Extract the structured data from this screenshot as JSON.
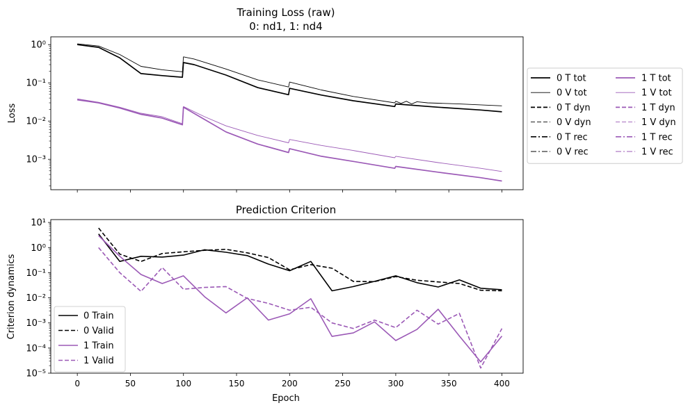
{
  "figure": {
    "top_title_line1": "Training Loss (raw)",
    "top_title_line2": "0: nd1, 1: nd4",
    "bottom_title": "Prediction Criterion",
    "top_ylabel": "Loss",
    "bottom_ylabel": "Criterion dynamics",
    "xlabel": "Epoch"
  },
  "colors": {
    "model0": "#000000",
    "model1": "#9b59b6"
  },
  "chart_data": [
    {
      "type": "line",
      "title": "Training Loss (raw)\n0: nd1, 1: nd4",
      "xlabel": "",
      "ylabel": "Loss",
      "yscale": "log",
      "xlim": [
        -25,
        420
      ],
      "ylim": [
        0.00016,
        1.6
      ],
      "x_ticks": [
        0,
        50,
        100,
        150,
        200,
        250,
        300,
        350,
        400
      ],
      "y_ticks": [
        "10^0",
        "10^-1",
        "10^-2",
        "10^-3"
      ],
      "legend_placement": "outside right",
      "legend_columns": 2,
      "legend": [
        {
          "label": "0 T tot",
          "color": "#000000",
          "style": "solid",
          "width": "thick"
        },
        {
          "label": "0 V tot",
          "color": "#000000",
          "style": "solid",
          "width": "thin"
        },
        {
          "label": "0 T dyn",
          "color": "#000000",
          "style": "dashed",
          "width": "thick"
        },
        {
          "label": "0 V dyn",
          "color": "#000000",
          "style": "dashed",
          "width": "thin"
        },
        {
          "label": "0 T rec",
          "color": "#000000",
          "style": "dashdot",
          "width": "thick"
        },
        {
          "label": "0 V rec",
          "color": "#000000",
          "style": "dashdot",
          "width": "thin"
        },
        {
          "label": "1 T tot",
          "color": "#9b59b6",
          "style": "solid",
          "width": "thick"
        },
        {
          "label": "1 V tot",
          "color": "#9b59b6",
          "style": "solid",
          "width": "thin"
        },
        {
          "label": "1 T dyn",
          "color": "#9b59b6",
          "style": "dashed",
          "width": "thick"
        },
        {
          "label": "1 V dyn",
          "color": "#9b59b6",
          "style": "dashed",
          "width": "thin"
        },
        {
          "label": "1 T rec",
          "color": "#9b59b6",
          "style": "dashdot",
          "width": "thick"
        },
        {
          "label": "1 V rec",
          "color": "#9b59b6",
          "style": "dashdot",
          "width": "thin"
        }
      ],
      "series": [
        {
          "name": "0 T tot",
          "color": "#000000",
          "dash": "solid",
          "width": "thick",
          "x": [
            0,
            20,
            40,
            60,
            80,
            99,
            100,
            110,
            140,
            170,
            199,
            200,
            230,
            260,
            299,
            300,
            340,
            380,
            400
          ],
          "y": [
            1.0,
            0.85,
            0.45,
            0.175,
            0.155,
            0.14,
            0.34,
            0.3,
            0.16,
            0.075,
            0.049,
            0.072,
            0.048,
            0.034,
            0.024,
            0.028,
            0.023,
            0.0195,
            0.0175
          ]
        },
        {
          "name": "0 V tot",
          "color": "#000000",
          "dash": "solid",
          "width": "thin",
          "x": [
            0,
            20,
            40,
            60,
            80,
            99,
            100,
            110,
            140,
            170,
            199,
            200,
            230,
            260,
            299,
            300,
            305,
            310,
            315,
            320,
            330,
            360,
            400
          ],
          "y": [
            1.05,
            0.92,
            0.55,
            0.27,
            0.22,
            0.195,
            0.48,
            0.42,
            0.23,
            0.12,
            0.078,
            0.105,
            0.065,
            0.044,
            0.03,
            0.033,
            0.029,
            0.033,
            0.028,
            0.032,
            0.03,
            0.028,
            0.025
          ]
        },
        {
          "name": "1 T tot",
          "color": "#9b59b6",
          "dash": "solid",
          "width": "thick",
          "x": [
            0,
            20,
            40,
            60,
            80,
            99,
            100,
            120,
            140,
            170,
            199,
            200,
            230,
            260,
            299,
            300,
            340,
            380,
            400
          ],
          "y": [
            0.036,
            0.03,
            0.022,
            0.015,
            0.012,
            0.008,
            0.023,
            0.011,
            0.0052,
            0.0025,
            0.0015,
            0.0019,
            0.0012,
            0.00088,
            0.00058,
            0.00065,
            0.00046,
            0.00033,
            0.00027
          ]
        },
        {
          "name": "1 V tot",
          "color": "#9b59b6",
          "dash": "solid",
          "width": "thin",
          "x": [
            0,
            20,
            40,
            60,
            80,
            99,
            100,
            120,
            140,
            170,
            199,
            200,
            230,
            260,
            299,
            300,
            340,
            380,
            400
          ],
          "y": [
            0.038,
            0.031,
            0.023,
            0.016,
            0.013,
            0.0085,
            0.024,
            0.013,
            0.0075,
            0.0042,
            0.0027,
            0.0033,
            0.0023,
            0.0017,
            0.0011,
            0.0012,
            0.00082,
            0.00058,
            0.00048
          ]
        }
      ]
    },
    {
      "type": "line",
      "title": "Prediction Criterion",
      "xlabel": "Epoch",
      "ylabel": "Criterion dynamics",
      "yscale": "log",
      "xlim": [
        -25,
        420
      ],
      "ylim": [
        1e-05,
        13
      ],
      "x_ticks": [
        0,
        50,
        100,
        150,
        200,
        250,
        300,
        350,
        400
      ],
      "y_ticks": [
        "10^1",
        "10^0",
        "10^-1",
        "10^-2",
        "10^-3",
        "10^-4",
        "10^-5"
      ],
      "legend_placement": "lower left",
      "legend": [
        {
          "label": "0 Train",
          "color": "#000000",
          "style": "solid"
        },
        {
          "label": "0 Valid",
          "color": "#000000",
          "style": "dashed"
        },
        {
          "label": "1 Train",
          "color": "#9b59b6",
          "style": "solid"
        },
        {
          "label": "1 Valid",
          "color": "#9b59b6",
          "style": "dashed"
        }
      ],
      "series": [
        {
          "name": "0 Train",
          "color": "#000000",
          "dash": "solid",
          "x": [
            20,
            40,
            60,
            80,
            100,
            120,
            140,
            160,
            180,
            200,
            220,
            240,
            260,
            280,
            300,
            320,
            340,
            360,
            380,
            400
          ],
          "y": [
            3.5,
            0.28,
            0.45,
            0.42,
            0.5,
            0.82,
            0.65,
            0.48,
            0.22,
            0.12,
            0.28,
            0.019,
            0.028,
            0.045,
            0.075,
            0.04,
            0.027,
            0.052,
            0.024,
            0.021
          ]
        },
        {
          "name": "0 Valid",
          "color": "#000000",
          "dash": "dashed",
          "x": [
            20,
            40,
            60,
            80,
            100,
            120,
            140,
            160,
            180,
            200,
            220,
            240,
            260,
            280,
            300,
            320,
            340,
            360,
            380,
            400
          ],
          "y": [
            6.0,
            0.55,
            0.28,
            0.58,
            0.68,
            0.78,
            0.85,
            0.62,
            0.4,
            0.13,
            0.21,
            0.15,
            0.045,
            0.044,
            0.07,
            0.05,
            0.043,
            0.037,
            0.02,
            0.019
          ]
        },
        {
          "name": "1 Train",
          "color": "#9b59b6",
          "dash": "solid",
          "x": [
            20,
            40,
            60,
            80,
            100,
            120,
            140,
            160,
            180,
            200,
            220,
            240,
            260,
            280,
            300,
            320,
            340,
            360,
            380,
            400
          ],
          "y": [
            3.0,
            0.45,
            0.085,
            0.037,
            0.075,
            0.011,
            0.0025,
            0.01,
            0.0013,
            0.0023,
            0.0092,
            0.00029,
            0.0004,
            0.0011,
            0.0002,
            0.00055,
            0.0035,
            0.0003,
            2.8e-05,
            0.0003
          ]
        },
        {
          "name": "1 Valid",
          "color": "#9b59b6",
          "dash": "dashed",
          "x": [
            20,
            40,
            60,
            80,
            100,
            120,
            140,
            160,
            180,
            200,
            220,
            240,
            260,
            280,
            300,
            320,
            340,
            360,
            380,
            400
          ],
          "y": [
            1.0,
            0.1,
            0.018,
            0.16,
            0.022,
            0.026,
            0.028,
            0.0095,
            0.006,
            0.0032,
            0.0042,
            0.001,
            0.0006,
            0.0013,
            0.00065,
            0.0032,
            0.0009,
            0.0024,
            1.6e-05,
            0.0006
          ]
        }
      ]
    }
  ]
}
